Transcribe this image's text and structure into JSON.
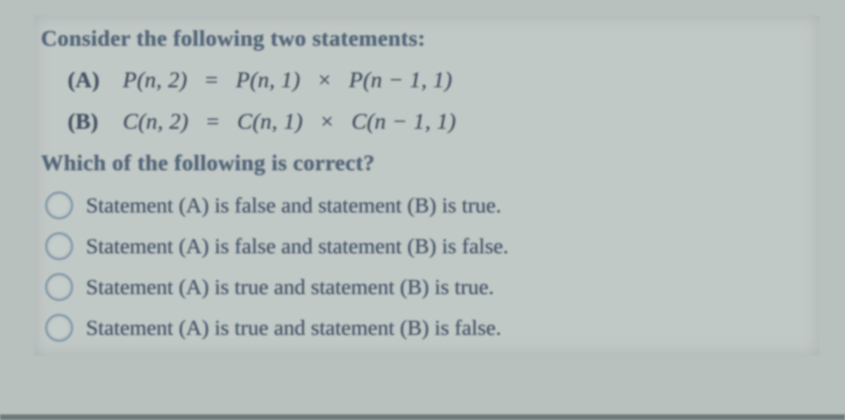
{
  "header": "Consider the following two statements:",
  "stmtA": {
    "label": "(A)",
    "lhs": "P(n, 2)",
    "eq": "=",
    "r1": "P(n, 1)",
    "times": "×",
    "r2": "P(n − 1, 1)"
  },
  "stmtB": {
    "label": "(B)",
    "lhs": "C(n, 2)",
    "eq": "=",
    "r1": "C(n, 1)",
    "times": "×",
    "r2": "C(n − 1, 1)"
  },
  "question": "Which of the following is correct?",
  "options": [
    "Statement (A) is false and statement (B) is true.",
    "Statement (A) is false and statement (B) is false.",
    "Statement (A) is true and statement (B) is true.",
    "Statement (A) is true and statement (B) is false."
  ],
  "colors": {
    "page_bg": "#b9c1bf",
    "text": "#3e5064",
    "radio_border": "#7f98a8"
  }
}
